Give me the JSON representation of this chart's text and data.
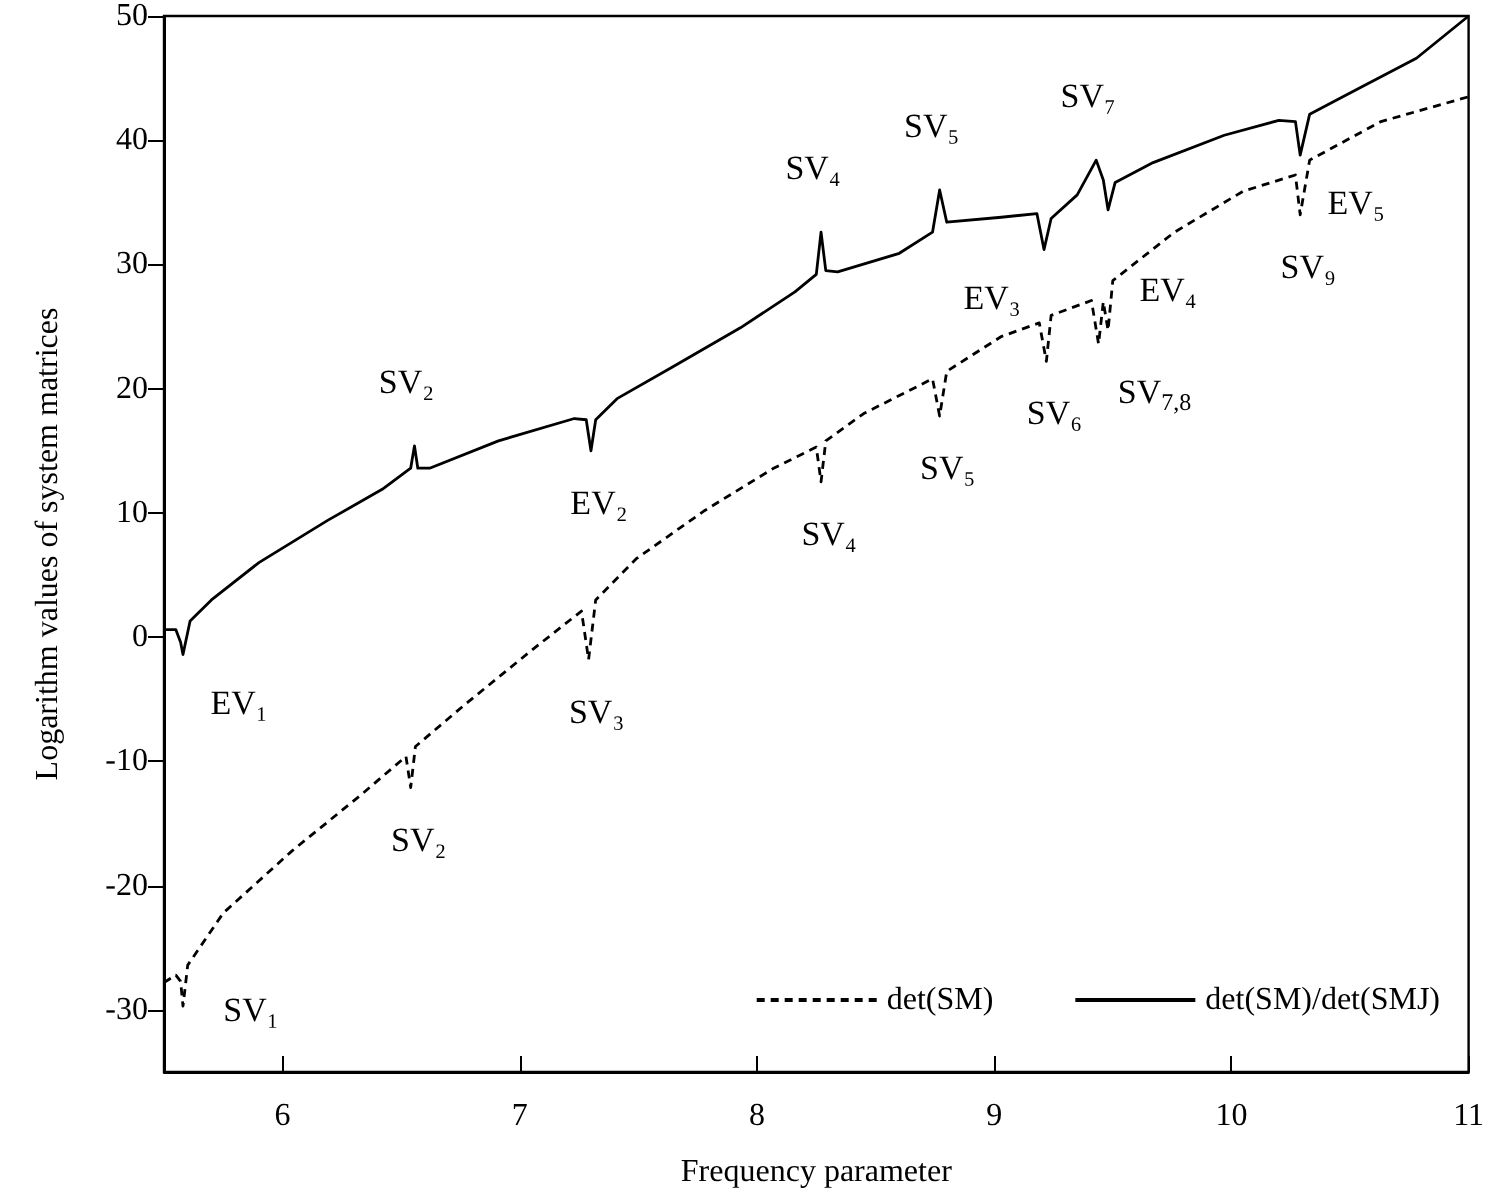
{
  "chart_data": {
    "type": "line",
    "xlabel": "Frequency parameter",
    "ylabel": "Logarithm values of system matrices",
    "xlim": [
      5.5,
      11
    ],
    "xticks": [
      6,
      7,
      8,
      9,
      10,
      11
    ],
    "ylim": [
      -35,
      50
    ],
    "yticks": [
      -30,
      -20,
      -10,
      0,
      10,
      20,
      30,
      40,
      50
    ],
    "grid": false,
    "legend": "bottom right",
    "marker": "none",
    "series": [
      {
        "name": "det(SM)",
        "color": "#000000",
        "line_style": "dashed",
        "x": [
          5.5,
          5.55,
          5.57,
          5.58,
          5.6,
          5.75,
          6.04,
          6.33,
          6.52,
          6.54,
          6.56,
          6.77,
          7.06,
          7.26,
          7.29,
          7.32,
          7.49,
          7.78,
          8.07,
          8.25,
          8.27,
          8.29,
          8.45,
          8.74,
          8.77,
          8.8,
          9.03,
          9.19,
          9.22,
          9.24,
          9.41,
          9.44,
          9.46,
          9.48,
          9.5,
          9.76,
          10.05,
          10.27,
          10.29,
          10.33,
          10.63,
          11.0
        ],
        "values": [
          -27.8,
          -27.2,
          -27.7,
          -29.7,
          -26.4,
          -22.2,
          -17.2,
          -12.7,
          -9.6,
          -12.1,
          -8.8,
          -5.4,
          -0.9,
          2.1,
          -1.8,
          3.0,
          6.3,
          10.2,
          13.6,
          15.3,
          12.5,
          15.8,
          18.0,
          20.8,
          17.8,
          21.4,
          24.2,
          25.3,
          22.2,
          25.9,
          27.1,
          23.6,
          27.0,
          24.7,
          28.7,
          32.6,
          35.9,
          37.2,
          34.0,
          38.4,
          41.5,
          43.5
        ]
      },
      {
        "name": "det(SM)/det(SMJ)",
        "color": "#000000",
        "line_style": "solid",
        "x": [
          5.5,
          5.55,
          5.57,
          5.58,
          5.61,
          5.7,
          5.9,
          6.19,
          6.42,
          6.54,
          6.556,
          6.57,
          6.62,
          6.91,
          7.23,
          7.28,
          7.3,
          7.32,
          7.41,
          7.64,
          7.93,
          8.16,
          8.25,
          8.27,
          8.29,
          8.34,
          8.6,
          8.74,
          8.77,
          8.8,
          9.03,
          9.18,
          9.21,
          9.24,
          9.35,
          9.43,
          9.46,
          9.48,
          9.51,
          9.67,
          9.97,
          10.2,
          10.27,
          10.29,
          10.33,
          10.49,
          10.78,
          11.0
        ],
        "values": [
          0.6,
          0.6,
          -0.4,
          -1.4,
          1.3,
          3.0,
          6.0,
          9.4,
          11.9,
          13.6,
          15.4,
          13.6,
          13.6,
          15.8,
          17.6,
          17.5,
          15.0,
          17.5,
          19.2,
          21.7,
          24.9,
          27.8,
          29.2,
          32.6,
          29.5,
          29.4,
          30.9,
          32.6,
          36.0,
          33.4,
          33.8,
          34.1,
          31.2,
          33.7,
          35.6,
          38.4,
          36.8,
          34.4,
          36.6,
          38.2,
          40.4,
          41.6,
          41.5,
          38.8,
          42.1,
          43.7,
          46.6,
          50.0
        ]
      }
    ],
    "annotations": [
      {
        "text": "EV₁",
        "x": 5.58,
        "y": -1.4
      },
      {
        "text": "SV₂",
        "x": 6.556,
        "y": 15.4
      },
      {
        "text": "EV₂",
        "x": 7.3,
        "y": 15.0
      },
      {
        "text": "SV₄",
        "x": 8.27,
        "y": 32.6
      },
      {
        "text": "SV₅",
        "x": 8.77,
        "y": 36.0
      },
      {
        "text": "EV₃",
        "x": 9.21,
        "y": 31.2
      },
      {
        "text": "SV₇",
        "x": 9.43,
        "y": 38.4
      },
      {
        "text": "EV₄",
        "x": 9.48,
        "y": 34.4
      },
      {
        "text": "EV₅",
        "x": 10.29,
        "y": 38.8
      },
      {
        "text": "SV₁",
        "x": 5.58,
        "y": -29.7
      },
      {
        "text": "SV₂",
        "x": 6.54,
        "y": -12.1
      },
      {
        "text": "SV₃",
        "x": 7.29,
        "y": -1.8
      },
      {
        "text": "SV₄",
        "x": 8.27,
        "y": 12.5
      },
      {
        "text": "SV₅",
        "x": 8.77,
        "y": 17.8
      },
      {
        "text": "SV₆",
        "x": 9.22,
        "y": 22.2
      },
      {
        "text": "SV$_{7,8}$",
        "x": 9.44,
        "y": 23.6
      },
      {
        "text": "SV₉",
        "x": 10.29,
        "y": 34.0
      }
    ]
  }
}
